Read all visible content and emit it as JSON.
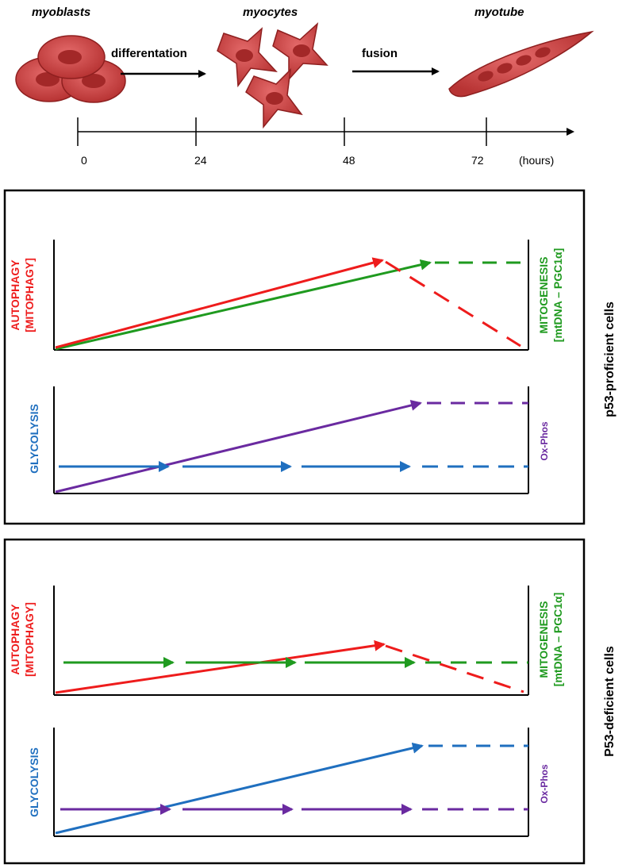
{
  "stages": {
    "myoblasts": "myoblasts",
    "myocytes": "myocytes",
    "myotube": "myotube"
  },
  "transitions": {
    "differentiation": "differentation",
    "fusion": "fusion"
  },
  "timeline": {
    "ticks": [
      "0",
      "24",
      "48",
      "72"
    ],
    "unit": "(hours)"
  },
  "panels": {
    "proficient": {
      "title": "p53-proficient  cells",
      "top_left_1": "AUTOPHAGY",
      "top_left_2": "[MITOPHAGY]",
      "top_right_1": "MITOGENESIS",
      "top_right_2": "[mtDNA – PGC1α]",
      "bottom_left": "GLYCOLYSIS",
      "bottom_right": "Ox-Phos"
    },
    "deficient": {
      "title": "P53-deficient  cells",
      "top_left_1": "AUTOPHAGY",
      "top_left_2": "[MITOPHAGY]",
      "top_right_1": "MITOGENESIS",
      "top_right_2": "[mtDNA – PGC1α]",
      "bottom_left": "GLYCOLYSIS",
      "bottom_right": "Ox-Phos"
    }
  },
  "colors": {
    "autophagy": "#ee1c1c",
    "mitogenesis": "#1f9a1f",
    "glycolysis": "#1f6fbf",
    "oxphos": "#6a2aa0",
    "cell_fill": "#c94040",
    "cell_dark": "#8e1f1f"
  }
}
